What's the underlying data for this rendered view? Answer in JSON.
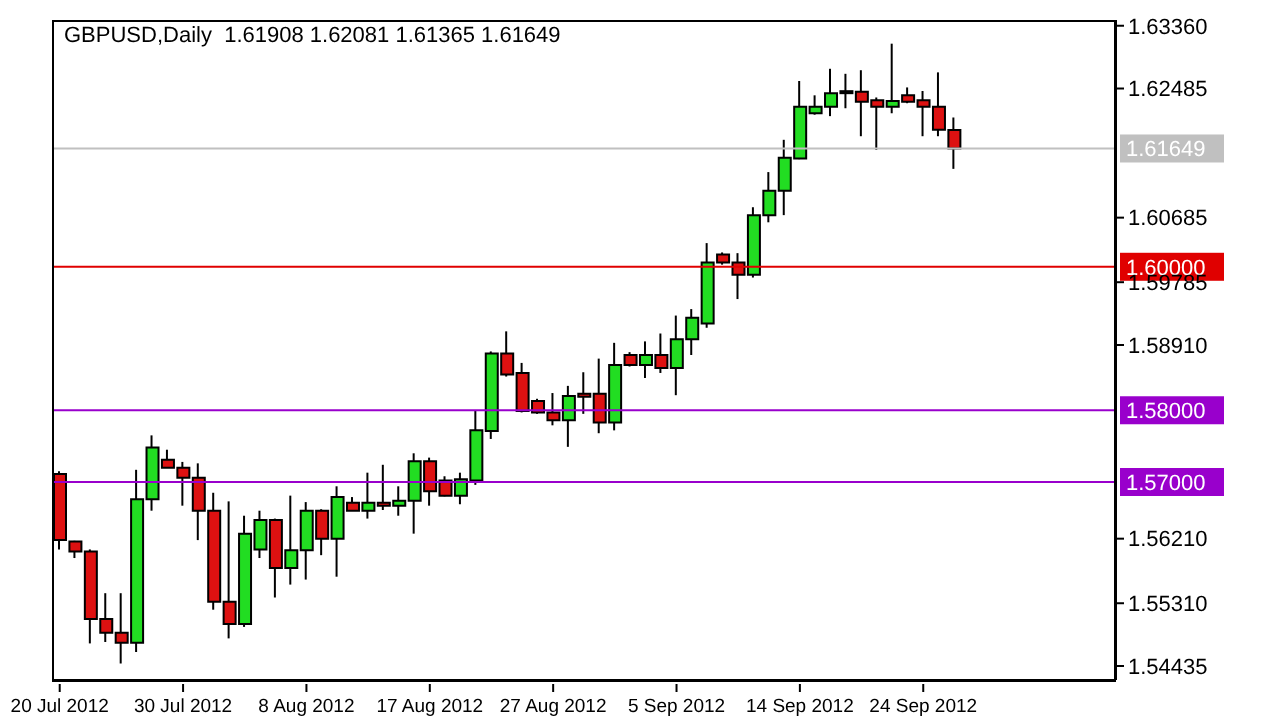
{
  "chart_data": {
    "type": "candlestick",
    "title": "GBPUSD,Daily  1.61908 1.62081 1.61365 1.61649",
    "categories": [
      "20 Jul 2012",
      null,
      null,
      null,
      null,
      null,
      null,
      null,
      "30 Jul 2012",
      null,
      null,
      null,
      null,
      null,
      null,
      null,
      "8 Aug 2012",
      null,
      null,
      null,
      null,
      null,
      null,
      null,
      "17 Aug 2012",
      null,
      null,
      null,
      null,
      null,
      null,
      null,
      "27 Aug 2012",
      null,
      null,
      null,
      null,
      null,
      null,
      null,
      "5 Sep 2012",
      null,
      null,
      null,
      null,
      null,
      null,
      null,
      "14 Sep 2012",
      null,
      null,
      null,
      null,
      null,
      null,
      null,
      "24 Sep 2012",
      null,
      null,
      null,
      null,
      null,
      null,
      null,
      null,
      null,
      null,
      null,
      null
    ],
    "ohlc": [
      [
        1.5711,
        1.5715,
        1.5606,
        1.5619
      ],
      [
        1.5617,
        1.5618,
        1.5594,
        1.5603
      ],
      [
        1.5603,
        1.5606,
        1.5475,
        1.5509
      ],
      [
        1.5509,
        1.5545,
        1.5477,
        1.549
      ],
      [
        1.549,
        1.5545,
        1.5447,
        1.5476
      ],
      [
        1.5476,
        1.5717,
        1.5463,
        1.5676
      ],
      [
        1.5676,
        1.5765,
        1.566,
        1.5748
      ],
      [
        1.5731,
        1.5745,
        1.572,
        1.572
      ],
      [
        1.572,
        1.5728,
        1.5667,
        1.5706
      ],
      [
        1.5706,
        1.5726,
        1.5619,
        1.566
      ],
      [
        1.566,
        1.5685,
        1.5522,
        1.5533
      ],
      [
        1.5533,
        1.5673,
        1.5482,
        1.5502
      ],
      [
        1.5502,
        1.5653,
        1.5498,
        1.5628
      ],
      [
        1.5606,
        1.566,
        1.5594,
        1.5647
      ],
      [
        1.5647,
        1.5649,
        1.5539,
        1.558
      ],
      [
        1.558,
        1.5681,
        1.5557,
        1.5605
      ],
      [
        1.5605,
        1.5672,
        1.5564,
        1.566
      ],
      [
        1.566,
        1.5662,
        1.5598,
        1.5621
      ],
      [
        1.5621,
        1.5694,
        1.5568,
        1.5679
      ],
      [
        1.5671,
        1.5679,
        1.566,
        1.566
      ],
      [
        1.566,
        1.5713,
        1.5649,
        1.5671
      ],
      [
        1.5671,
        1.5724,
        1.5661,
        1.5667
      ],
      [
        1.5667,
        1.5694,
        1.5653,
        1.5674
      ],
      [
        1.5674,
        1.574,
        1.5628,
        1.5729
      ],
      [
        1.5729,
        1.5734,
        1.5667,
        1.5687
      ],
      [
        1.5702,
        1.5708,
        1.568,
        1.5681
      ],
      [
        1.5681,
        1.5713,
        1.5669,
        1.5704
      ],
      [
        1.5702,
        1.58,
        1.5696,
        1.5772
      ],
      [
        1.5771,
        1.5882,
        1.576,
        1.5879
      ],
      [
        1.5879,
        1.591,
        1.5847,
        1.585
      ],
      [
        1.5852,
        1.5866,
        1.5797,
        1.5799
      ],
      [
        1.5813,
        1.5816,
        1.5795,
        1.5797
      ],
      [
        1.5797,
        1.5824,
        1.5779,
        1.5786
      ],
      [
        1.5786,
        1.5834,
        1.5749,
        1.582
      ],
      [
        1.5823,
        1.5853,
        1.5795,
        1.5819
      ],
      [
        1.5823,
        1.5872,
        1.5768,
        1.5783
      ],
      [
        1.5783,
        1.5894,
        1.5772,
        1.5863
      ],
      [
        1.5877,
        1.5881,
        1.5861,
        1.5863
      ],
      [
        1.5863,
        1.5896,
        1.5845,
        1.5877
      ],
      [
        1.5877,
        1.5907,
        1.5852,
        1.5859
      ],
      [
        1.5859,
        1.5932,
        1.5821,
        1.5899
      ],
      [
        1.5899,
        1.5941,
        1.5877,
        1.5929
      ],
      [
        1.5921,
        1.6033,
        1.5915,
        1.6006
      ],
      [
        1.6017,
        1.602,
        1.6003,
        1.6006
      ],
      [
        1.6006,
        1.6019,
        1.5955,
        1.5989
      ],
      [
        1.5989,
        1.6083,
        1.5985,
        1.6072
      ],
      [
        1.6072,
        1.6132,
        1.6062,
        1.6106
      ],
      [
        1.6106,
        1.6177,
        1.6072,
        1.6152
      ],
      [
        1.6151,
        1.6259,
        1.615,
        1.6223
      ],
      [
        1.6214,
        1.6239,
        1.6212,
        1.6223
      ],
      [
        1.6223,
        1.6276,
        1.621,
        1.6242
      ],
      [
        1.6244,
        1.6269,
        1.6221,
        1.6242
      ],
      [
        1.6244,
        1.6274,
        1.6182,
        1.623
      ],
      [
        1.6232,
        1.6236,
        1.6163,
        1.6223
      ],
      [
        1.6223,
        1.6311,
        1.6214,
        1.6231
      ],
      [
        1.6239,
        1.625,
        1.6228,
        1.623
      ],
      [
        1.6232,
        1.6245,
        1.6182,
        1.6223
      ],
      [
        1.6223,
        1.6271,
        1.6182,
        1.6191
      ],
      [
        1.61908,
        1.62081,
        1.61365,
        1.61649
      ],
      null,
      null,
      null,
      null,
      null,
      null,
      null,
      null,
      null,
      null
    ],
    "colors": [
      "#dd1111",
      "#dd1111",
      "#dd1111",
      "#dd1111",
      "#dd1111",
      "#22dd22",
      "#22dd22",
      "#dd1111",
      "#dd1111",
      "#dd1111",
      "#dd1111",
      "#dd1111",
      "#22dd22",
      "#22dd22",
      "#dd1111",
      "#22dd22",
      "#22dd22",
      "#dd1111",
      "#22dd22",
      "#dd1111",
      "#22dd22",
      "#dd1111",
      "#22dd22",
      "#22dd22",
      "#dd1111",
      "#dd1111",
      "#22dd22",
      "#22dd22",
      "#22dd22",
      "#dd1111",
      "#dd1111",
      "#dd1111",
      "#dd1111",
      "#22dd22",
      "#dd1111",
      "#dd1111",
      "#22dd22",
      "#dd1111",
      "#22dd22",
      "#dd1111",
      "#22dd22",
      "#22dd22",
      "#22dd22",
      "#dd1111",
      "#dd1111",
      "#22dd22",
      "#22dd22",
      "#22dd22",
      "#22dd22",
      "#22dd22",
      "#22dd22",
      "#dd1111",
      "#dd1111",
      "#dd1111",
      "#22dd22",
      "#dd1111",
      "#dd1111",
      "#dd1111",
      "#dd1111",
      null,
      null,
      null,
      null,
      null,
      null,
      null,
      null,
      null,
      null
    ],
    "ylim": [
      1.5424,
      1.6344
    ],
    "yticks": [
      {
        "value": 1.6336,
        "label": "1.63360"
      },
      {
        "value": 1.62485,
        "label": "1.62485"
      },
      {
        "value": 1.60685,
        "label": "1.60685"
      },
      {
        "value": 1.59785,
        "label": "1.59785"
      },
      {
        "value": 1.5891,
        "label": "1.58910"
      },
      {
        "value": 1.5621,
        "label": "1.56210"
      },
      {
        "value": 1.5531,
        "label": "1.55310"
      },
      {
        "value": 1.54435,
        "label": "1.54435"
      }
    ],
    "ref_lines": [
      {
        "axis": "y",
        "value": 1.61649,
        "label": "1.61649",
        "color": "#c0c0c0"
      },
      {
        "axis": "y",
        "value": 1.6,
        "label": "1.60000",
        "color": "#e00000"
      },
      {
        "axis": "y",
        "value": 1.58,
        "label": "1.58000",
        "color": "#9900cc"
      },
      {
        "axis": "y",
        "value": 1.57,
        "label": "1.57000",
        "color": "#9900cc"
      }
    ],
    "grid": false
  }
}
